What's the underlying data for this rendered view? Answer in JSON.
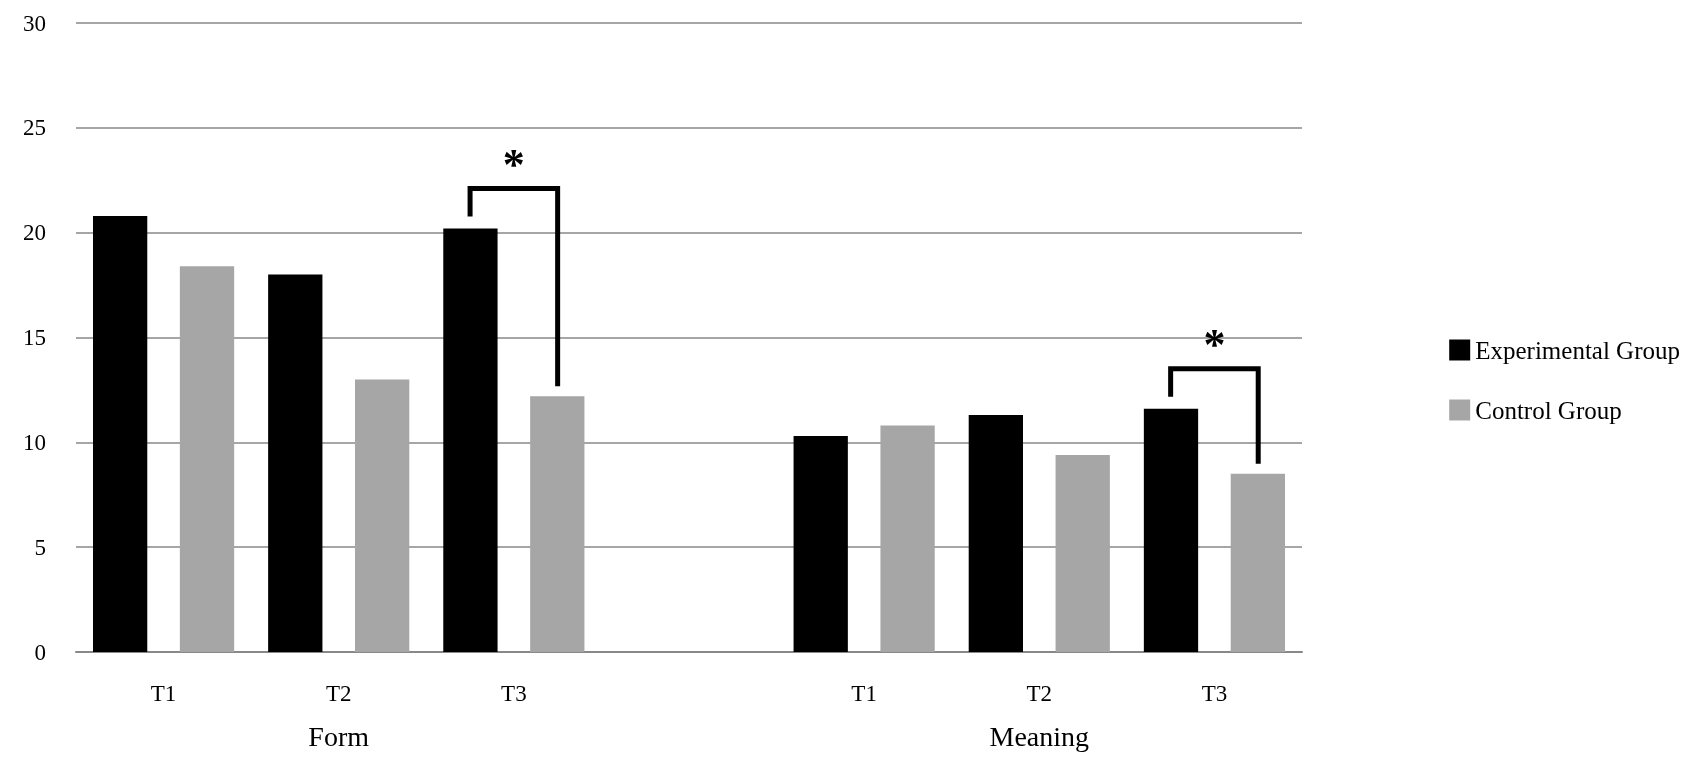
{
  "chart_data": {
    "type": "bar",
    "categories": [
      "T1",
      "T2",
      "T3",
      null,
      "T1",
      "T2",
      "T3"
    ],
    "series": [
      {
        "name": "Experimental Group",
        "color": "#000000",
        "values": [
          20.8,
          18.0,
          20.2,
          null,
          10.3,
          11.3,
          11.6
        ]
      },
      {
        "name": "Control Group",
        "color": "#a6a6a6",
        "values": [
          18.4,
          13.0,
          12.2,
          null,
          10.8,
          9.4,
          8.5
        ]
      }
    ],
    "ylim": [
      0,
      30
    ],
    "yticks": [
      0,
      5,
      10,
      15,
      20,
      25,
      30
    ],
    "grid": "y",
    "legend": "right",
    "annotations": [
      "Form",
      "Meaning",
      "*",
      "*"
    ]
  }
}
